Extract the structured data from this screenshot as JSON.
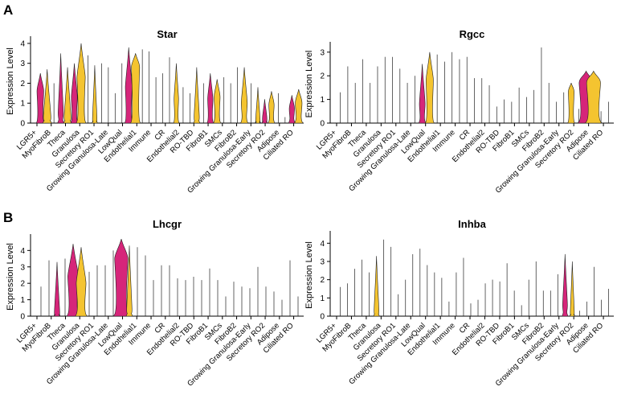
{
  "figure": {
    "panel_a_letter": "A",
    "panel_b_letter": "B"
  },
  "colors": {
    "magenta": "#d6257a",
    "gold": "#f4c430"
  },
  "chart_data": [
    {
      "type": "violin",
      "title": "Star",
      "xlabel": "",
      "ylabel": "Expression Level",
      "ylim": [
        0,
        4.2
      ],
      "yticks": [
        0,
        1,
        2,
        3,
        4
      ],
      "categories": [
        "LGR5+",
        "MyoFibroB",
        "Theca",
        "Granulosa",
        "Secretory RO1",
        "Growing Granulosa-Late",
        "LowQual",
        "Endothelial1",
        "Immune",
        "CR",
        "Endothelial2",
        "RO-TBD",
        "FibroB1",
        "SMCs",
        "FibroB2",
        "Growing Granulosa-Early",
        "Secretory RO2",
        "Adipose",
        "Ciliated RO"
      ],
      "series": [
        {
          "values": [
            {
              "max": 2.5,
              "shape": "magenta",
              "peak": 1.6,
              "width": 0.45
            },
            {
              "max": 2.7,
              "shape": "gold",
              "peak": 0.3,
              "width": 0.5
            },
            {
              "max": 2.0,
              "shape": "line"
            },
            {
              "max": 3.5,
              "shape": "magenta",
              "peak": 0.5,
              "width": 0.35
            },
            {
              "max": 2.8,
              "shape": "gold",
              "peak": 0.3,
              "width": 0.45
            },
            {
              "max": 3.0,
              "shape": "magenta",
              "peak": 1.3,
              "width": 0.4
            },
            {
              "max": 4.0,
              "shape": "gold",
              "peak": 2.3,
              "width": 0.55
            },
            {
              "max": 3.4,
              "shape": "line"
            },
            {
              "max": 2.9,
              "shape": "gold",
              "peak": 0.2,
              "width": 0.3
            },
            {
              "max": 3.0,
              "shape": "line"
            },
            {
              "max": 2.8,
              "shape": "line"
            },
            {
              "max": 1.5,
              "shape": "line"
            },
            {
              "max": 3.0,
              "shape": "line"
            },
            {
              "max": 3.8,
              "shape": "magenta",
              "peak": 1.8,
              "width": 0.45
            },
            {
              "max": 3.5,
              "shape": "gold",
              "peak": 2.8,
              "width": 0.55
            },
            {
              "max": 3.7,
              "shape": "line"
            },
            {
              "max": 3.6,
              "shape": "line"
            },
            {
              "max": 2.3,
              "shape": "line"
            },
            {
              "max": 2.5,
              "shape": "line"
            },
            {
              "max": 3.3,
              "shape": "line"
            },
            {
              "max": 3.0,
              "shape": "gold",
              "peak": 1.2,
              "width": 0.3
            },
            {
              "max": 1.8,
              "shape": "line"
            },
            {
              "max": 1.5,
              "shape": "line"
            },
            {
              "max": 2.8,
              "shape": "gold",
              "peak": 0.3,
              "width": 0.35
            },
            {
              "max": 2.0,
              "shape": "line"
            },
            {
              "max": 2.5,
              "shape": "magenta",
              "peak": 1.2,
              "width": 0.35
            },
            {
              "max": 2.2,
              "shape": "gold",
              "peak": 1.3,
              "width": 0.4
            },
            {
              "max": 2.3,
              "shape": "line"
            },
            {
              "max": 2.0,
              "shape": "line"
            },
            {
              "max": 2.8,
              "shape": "line"
            },
            {
              "max": 2.8,
              "shape": "gold",
              "peak": 1.0,
              "width": 0.4
            },
            {
              "max": 2.0,
              "shape": "line"
            },
            {
              "max": 1.8,
              "shape": "gold",
              "peak": 0.1,
              "width": 0.3
            },
            {
              "max": 1.2,
              "shape": "magenta",
              "peak": 0.2,
              "width": 0.3
            },
            {
              "max": 1.6,
              "shape": "gold",
              "peak": 0.9,
              "width": 0.35
            },
            {
              "max": 1.5,
              "shape": "line"
            },
            {
              "max": 0.3,
              "shape": "line"
            },
            {
              "max": 1.4,
              "shape": "magenta",
              "peak": 0.7,
              "width": 0.35
            },
            {
              "max": 1.7,
              "shape": "gold",
              "peak": 1.0,
              "width": 0.45
            }
          ]
        }
      ]
    },
    {
      "type": "violin",
      "title": "Rgcc",
      "xlabel": "",
      "ylabel": "Expression Level",
      "ylim": [
        0,
        3.3
      ],
      "yticks": [
        0,
        1,
        2,
        3
      ],
      "categories": [
        "LGR5+",
        "MyoFibroB",
        "Theca",
        "Granulosa",
        "Secretory RO1",
        "Growing Granulosa-Late",
        "LowQual",
        "Endothelial1",
        "Immune",
        "CR",
        "Endothelial2",
        "RO-TBD",
        "FibroB1",
        "SMCs",
        "FibroB2",
        "Growing Granulosa-Early",
        "Secretory RO2",
        "Adipose",
        "Ciliated RO"
      ],
      "series": [
        {
          "values": [
            {
              "max": 1.3,
              "shape": "line"
            },
            {
              "max": 2.4,
              "shape": "line"
            },
            {
              "max": 1.7,
              "shape": "line"
            },
            {
              "max": 2.7,
              "shape": "line"
            },
            {
              "max": 1.7,
              "shape": "line"
            },
            {
              "max": 2.4,
              "shape": "line"
            },
            {
              "max": 2.8,
              "shape": "line"
            },
            {
              "max": 2.8,
              "shape": "line"
            },
            {
              "max": 2.3,
              "shape": "line"
            },
            {
              "max": 1.7,
              "shape": "line"
            },
            {
              "max": 2.0,
              "shape": "line"
            },
            {
              "max": 2.5,
              "shape": "magenta",
              "peak": 0.8,
              "width": 0.35
            },
            {
              "max": 3.0,
              "shape": "gold",
              "peak": 1.8,
              "width": 0.45
            },
            {
              "max": 2.9,
              "shape": "line"
            },
            {
              "max": 2.6,
              "shape": "line"
            },
            {
              "max": 3.0,
              "shape": "line"
            },
            {
              "max": 2.7,
              "shape": "line"
            },
            {
              "max": 2.8,
              "shape": "line"
            },
            {
              "max": 1.9,
              "shape": "line"
            },
            {
              "max": 1.9,
              "shape": "line"
            },
            {
              "max": 1.6,
              "shape": "line"
            },
            {
              "max": 0.7,
              "shape": "line"
            },
            {
              "max": 1.0,
              "shape": "line"
            },
            {
              "max": 0.9,
              "shape": "line"
            },
            {
              "max": 1.5,
              "shape": "line"
            },
            {
              "max": 1.1,
              "shape": "line"
            },
            {
              "max": 1.4,
              "shape": "line"
            },
            {
              "max": 3.2,
              "shape": "line"
            },
            {
              "max": 1.7,
              "shape": "line"
            },
            {
              "max": 0.9,
              "shape": "line"
            },
            {
              "max": 1.3,
              "shape": "line"
            },
            {
              "max": 1.7,
              "shape": "gold",
              "peak": 1.3,
              "width": 0.35
            },
            {
              "max": 0.6,
              "shape": "line"
            },
            {
              "max": 2.2,
              "shape": "magenta",
              "peak": 1.7,
              "width": 0.85
            },
            {
              "max": 2.2,
              "shape": "gold",
              "peak": 1.7,
              "width": 0.85
            },
            {
              "max": 0.5,
              "shape": "line"
            },
            {
              "max": 0.9,
              "shape": "line"
            }
          ]
        }
      ]
    },
    {
      "type": "violin",
      "title": "Lhcgr",
      "xlabel": "",
      "ylabel": "Expression Level",
      "ylim": [
        0,
        4.8
      ],
      "yticks": [
        0,
        1,
        2,
        3,
        4
      ],
      "categories": [
        "LGR5+",
        "MyoFibroB",
        "Theca",
        "Granulosa",
        "Secretory RO1",
        "Growing Granulosa-Late",
        "LowQual",
        "Endothelial1",
        "Immune",
        "CR",
        "Endothelial2",
        "RO-TBD",
        "FibroB1",
        "SMCs",
        "FibroB2",
        "Growing Granulosa-Early",
        "Secretory RO2",
        "Adipose",
        "Ciliated RO"
      ],
      "series": [
        {
          "values": [
            {
              "max": 1.8,
              "shape": "line"
            },
            {
              "max": 3.4,
              "shape": "line"
            },
            {
              "max": 3.3,
              "shape": "magenta",
              "peak": 0.2,
              "width": 0.3
            },
            {
              "max": 3.5,
              "shape": "line"
            },
            {
              "max": 4.4,
              "shape": "magenta",
              "peak": 2.4,
              "width": 0.6
            },
            {
              "max": 4.2,
              "shape": "gold",
              "peak": 2.0,
              "width": 0.55
            },
            {
              "max": 2.7,
              "shape": "line"
            },
            {
              "max": 3.1,
              "shape": "line"
            },
            {
              "max": 3.1,
              "shape": "line"
            },
            {
              "max": 4.0,
              "shape": "line"
            },
            {
              "max": 4.7,
              "shape": "magenta",
              "peak": 3.5,
              "width": 0.75
            },
            {
              "max": 4.3,
              "shape": "gold",
              "peak": 0.4,
              "width": 0.3
            },
            {
              "max": 4.2,
              "shape": "line"
            },
            {
              "max": 3.7,
              "shape": "line"
            },
            {
              "max": 2.2,
              "shape": "line"
            },
            {
              "max": 3.1,
              "shape": "line"
            },
            {
              "max": 3.1,
              "shape": "line"
            },
            {
              "max": 2.3,
              "shape": "line"
            },
            {
              "max": 2.2,
              "shape": "line"
            },
            {
              "max": 2.4,
              "shape": "line"
            },
            {
              "max": 2.2,
              "shape": "line"
            },
            {
              "max": 2.9,
              "shape": "line"
            },
            {
              "max": 2.2,
              "shape": "line"
            },
            {
              "max": 1.2,
              "shape": "line"
            },
            {
              "max": 2.1,
              "shape": "line"
            },
            {
              "max": 1.8,
              "shape": "line"
            },
            {
              "max": 1.7,
              "shape": "line"
            },
            {
              "max": 3.0,
              "shape": "line"
            },
            {
              "max": 1.8,
              "shape": "line"
            },
            {
              "max": 1.5,
              "shape": "line"
            },
            {
              "max": 1.0,
              "shape": "line"
            },
            {
              "max": 3.4,
              "shape": "line"
            },
            {
              "max": 1.2,
              "shape": "line"
            }
          ]
        }
      ]
    },
    {
      "type": "violin",
      "title": "Inhba",
      "xlabel": "",
      "ylabel": "Expression Level",
      "ylim": [
        0,
        4.5
      ],
      "yticks": [
        0,
        1,
        2,
        3,
        4
      ],
      "categories": [
        "LGR5+",
        "MyoFibroB",
        "Theca",
        "Granulosa",
        "Secretory RO1",
        "Growing Granulosa-Late",
        "LowQual",
        "Endothelial1",
        "Immune",
        "CR",
        "Endothelial2",
        "RO-TBD",
        "FibroB1",
        "SMCs",
        "FibroB2",
        "Growing Granulosa-Early",
        "Secretory RO2",
        "Adipose",
        "Ciliated RO"
      ],
      "series": [
        {
          "values": [
            {
              "max": 1.6,
              "shape": "line"
            },
            {
              "max": 1.8,
              "shape": "line"
            },
            {
              "max": 2.6,
              "shape": "line"
            },
            {
              "max": 3.1,
              "shape": "line"
            },
            {
              "max": 2.4,
              "shape": "line"
            },
            {
              "max": 3.3,
              "shape": "gold",
              "peak": 0.3,
              "width": 0.3
            },
            {
              "max": 4.2,
              "shape": "line"
            },
            {
              "max": 3.8,
              "shape": "line"
            },
            {
              "max": 1.2,
              "shape": "line"
            },
            {
              "max": 2.0,
              "shape": "line"
            },
            {
              "max": 3.4,
              "shape": "line"
            },
            {
              "max": 3.7,
              "shape": "line"
            },
            {
              "max": 2.8,
              "shape": "line"
            },
            {
              "max": 2.4,
              "shape": "line"
            },
            {
              "max": 2.1,
              "shape": "line"
            },
            {
              "max": 0.8,
              "shape": "line"
            },
            {
              "max": 2.4,
              "shape": "line"
            },
            {
              "max": 3.2,
              "shape": "line"
            },
            {
              "max": 0.7,
              "shape": "line"
            },
            {
              "max": 0.9,
              "shape": "line"
            },
            {
              "max": 1.8,
              "shape": "line"
            },
            {
              "max": 2.0,
              "shape": "line"
            },
            {
              "max": 1.9,
              "shape": "line"
            },
            {
              "max": 2.9,
              "shape": "line"
            },
            {
              "max": 1.4,
              "shape": "line"
            },
            {
              "max": 0.6,
              "shape": "line"
            },
            {
              "max": 2.0,
              "shape": "line"
            },
            {
              "max": 3.0,
              "shape": "line"
            },
            {
              "max": 1.4,
              "shape": "line"
            },
            {
              "max": 1.4,
              "shape": "line"
            },
            {
              "max": 2.3,
              "shape": "line"
            },
            {
              "max": 3.4,
              "shape": "magenta",
              "peak": 0.6,
              "width": 0.3
            },
            {
              "max": 3.0,
              "shape": "gold",
              "peak": 0.2,
              "width": 0.25
            },
            {
              "max": 0.3,
              "shape": "line"
            },
            {
              "max": 0.8,
              "shape": "line"
            },
            {
              "max": 2.7,
              "shape": "line"
            },
            {
              "max": 0.9,
              "shape": "line"
            },
            {
              "max": 1.5,
              "shape": "line"
            }
          ]
        }
      ]
    }
  ]
}
